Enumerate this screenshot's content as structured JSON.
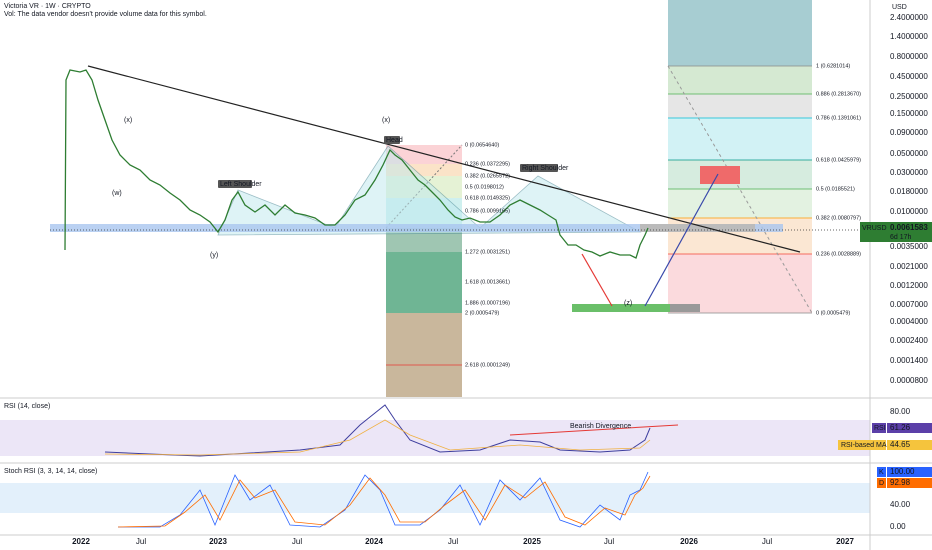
{
  "header": {
    "title": "Victoria VR · 1W · CRYPTO",
    "volume_note": "Vol: The data vendor doesn't provide volume data for this symbol."
  },
  "price_axis": {
    "currency": "USD",
    "labels": [
      "2.4000000",
      "1.4000000",
      "0.8000000",
      "0.4500000",
      "0.2500000",
      "0.1500000",
      "0.0900000",
      "0.0500000",
      "0.0300000",
      "0.0180000",
      "0.0100000",
      "0.0035000",
      "0.0021000",
      "0.0012000",
      "0.0007000",
      "0.0004000",
      "0.0002400",
      "0.0001400",
      "0.0000800"
    ],
    "symbol": "VRUSD",
    "last_price": "0.0061583",
    "countdown": "6d 17h"
  },
  "fib_right": [
    "1 (0.6281014)",
    "0.886 (0.2813670)",
    "0.786 (0.1391061)",
    "0.618 (0.0425979)",
    "0.5 (0.0185521)",
    "0.382 (0.0080797)",
    "0.236 (0.0028889)",
    "0 (0.0005479)"
  ],
  "fib_mid": [
    "0 (0.0654640)",
    "0.236 (0.0372295)",
    "0.382 (0.0265572)",
    "0.5 (0.0198012)",
    "0.618 (0.0149325)",
    "0.786 (0.0099165)",
    "1.272 (0.0031251)",
    "1.618 (0.0013661)",
    "1.886 (0.0007196)",
    "2 (0.0005479)",
    "2.618 (0.0001249)"
  ],
  "annotations": [
    "(x)",
    "(w)",
    "Left Shoulder",
    "(y)",
    "(x)",
    "Head",
    "Right Shoulder",
    "(z)"
  ],
  "rsi": {
    "title": "RSI (14, close)",
    "divergence": "Bearish Divergence",
    "axis": [
      "80.00"
    ],
    "rsi_tag": "RSI",
    "rsi_value": "61.26",
    "ma_tag": "RSI-based MA",
    "ma_value": "44.65"
  },
  "stoch": {
    "title": "Stoch RSI (3, 3, 14, 14, close)",
    "k_tag": "K",
    "k_value": "100.00",
    "d_tag": "D",
    "d_value": "92.98",
    "axis": [
      "40.00",
      "0.00"
    ]
  },
  "time_axis": [
    "2022",
    "Jul",
    "2023",
    "Jul",
    "2024",
    "Jul",
    "2025",
    "Jul",
    "2026",
    "Jul",
    "2027"
  ]
}
